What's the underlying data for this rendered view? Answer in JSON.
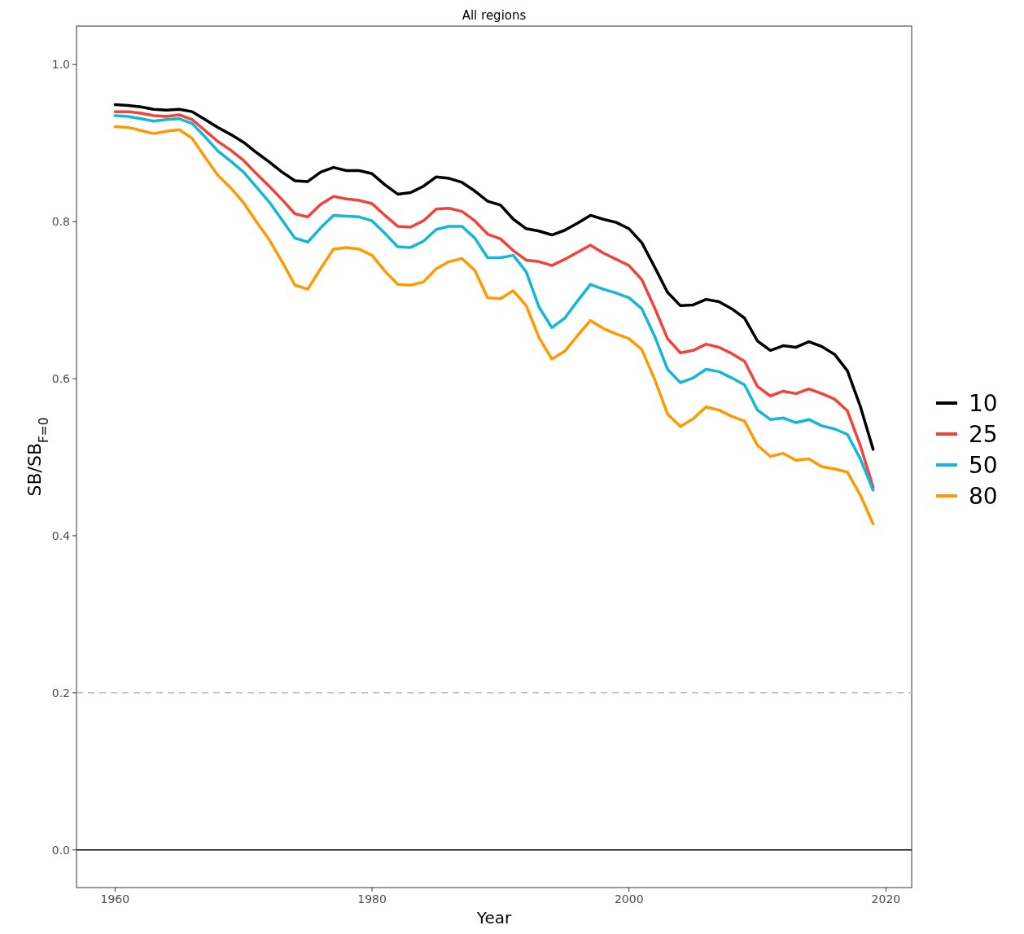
{
  "chart_data": {
    "type": "line",
    "title": "All regions",
    "xlabel": "Year",
    "ylabel": "SB/SB$_{F=0}$",
    "x": [
      1960,
      1961,
      1962,
      1963,
      1964,
      1965,
      1966,
      1967,
      1968,
      1969,
      1970,
      1971,
      1972,
      1973,
      1974,
      1975,
      1976,
      1977,
      1978,
      1979,
      1980,
      1981,
      1982,
      1983,
      1984,
      1985,
      1986,
      1987,
      1988,
      1989,
      1990,
      1991,
      1992,
      1993,
      1994,
      1995,
      1996,
      1997,
      1998,
      1999,
      2000,
      2001,
      2002,
      2003,
      2004,
      2005,
      2006,
      2007,
      2008,
      2009,
      2010,
      2011,
      2012,
      2013,
      2014,
      2015,
      2016,
      2017,
      2018,
      2019
    ],
    "series": [
      {
        "name": "10",
        "color": "#000000",
        "values": [
          0.949,
          0.948,
          0.946,
          0.943,
          0.942,
          0.943,
          0.94,
          0.93,
          0.92,
          0.911,
          0.901,
          0.888,
          0.876,
          0.863,
          0.852,
          0.851,
          0.863,
          0.869,
          0.865,
          0.865,
          0.861,
          0.847,
          0.835,
          0.837,
          0.845,
          0.857,
          0.855,
          0.85,
          0.839,
          0.826,
          0.821,
          0.803,
          0.791,
          0.788,
          0.783,
          0.789,
          0.798,
          0.808,
          0.803,
          0.799,
          0.791,
          0.773,
          0.742,
          0.71,
          0.693,
          0.694,
          0.701,
          0.698,
          0.689,
          0.677,
          0.648,
          0.636,
          0.642,
          0.64,
          0.647,
          0.641,
          0.631,
          0.61,
          0.565,
          0.51
        ]
      },
      {
        "name": "25",
        "color": "#f0443a",
        "values": [
          0.94,
          0.94,
          0.938,
          0.935,
          0.934,
          0.936,
          0.93,
          0.916,
          0.902,
          0.891,
          0.878,
          0.861,
          0.845,
          0.828,
          0.81,
          0.806,
          0.822,
          0.832,
          0.829,
          0.827,
          0.823,
          0.808,
          0.794,
          0.793,
          0.801,
          0.816,
          0.817,
          0.813,
          0.801,
          0.784,
          0.778,
          0.763,
          0.751,
          0.749,
          0.744,
          0.752,
          0.761,
          0.77,
          0.76,
          0.752,
          0.744,
          0.726,
          0.69,
          0.651,
          0.633,
          0.636,
          0.644,
          0.64,
          0.632,
          0.622,
          0.59,
          0.578,
          0.584,
          0.581,
          0.587,
          0.581,
          0.574,
          0.559,
          0.515,
          0.462
        ]
      },
      {
        "name": "50",
        "color": "#12b8d6",
        "values": [
          0.935,
          0.934,
          0.931,
          0.928,
          0.93,
          0.931,
          0.925,
          0.908,
          0.89,
          0.877,
          0.863,
          0.844,
          0.825,
          0.802,
          0.779,
          0.774,
          0.792,
          0.808,
          0.807,
          0.806,
          0.801,
          0.785,
          0.768,
          0.767,
          0.775,
          0.79,
          0.794,
          0.794,
          0.779,
          0.754,
          0.754,
          0.757,
          0.736,
          0.691,
          0.665,
          0.677,
          0.699,
          0.72,
          0.714,
          0.709,
          0.703,
          0.689,
          0.654,
          0.612,
          0.595,
          0.601,
          0.612,
          0.609,
          0.601,
          0.592,
          0.56,
          0.548,
          0.55,
          0.544,
          0.548,
          0.54,
          0.536,
          0.529,
          0.498,
          0.458
        ]
      },
      {
        "name": "80",
        "color": "#fd9a00",
        "values": [
          0.921,
          0.92,
          0.916,
          0.912,
          0.915,
          0.917,
          0.906,
          0.882,
          0.859,
          0.843,
          0.824,
          0.8,
          0.777,
          0.749,
          0.719,
          0.714,
          0.74,
          0.765,
          0.767,
          0.765,
          0.757,
          0.737,
          0.72,
          0.719,
          0.723,
          0.74,
          0.749,
          0.753,
          0.738,
          0.703,
          0.702,
          0.712,
          0.693,
          0.652,
          0.625,
          0.635,
          0.655,
          0.674,
          0.664,
          0.657,
          0.651,
          0.637,
          0.599,
          0.555,
          0.539,
          0.549,
          0.564,
          0.56,
          0.552,
          0.546,
          0.515,
          0.501,
          0.505,
          0.496,
          0.498,
          0.488,
          0.485,
          0.481,
          0.452,
          0.415
        ]
      }
    ],
    "xlim": [
      1957,
      2022
    ],
    "xticks": [
      1960,
      1980,
      2000,
      2020
    ],
    "ylim": [
      -0.048,
      1.049
    ],
    "yticks": [
      {
        "value": 0,
        "label": "0.0"
      },
      {
        "value": 0.2,
        "label": "0.2"
      },
      {
        "value": 0.4,
        "label": "0.4"
      },
      {
        "value": 0.6,
        "label": "0.6"
      },
      {
        "value": 0.8,
        "label": "0.8"
      },
      {
        "value": 1,
        "label": "1.0"
      }
    ],
    "ref_lines": [
      {
        "axis": "y",
        "value": 0,
        "color": "#000000",
        "line_style": "solid"
      },
      {
        "axis": "y",
        "value": 0.2,
        "color": "#bebebe",
        "line_style": "dashed"
      }
    ],
    "grid": false,
    "legend": "right",
    "line_style": "solid"
  }
}
